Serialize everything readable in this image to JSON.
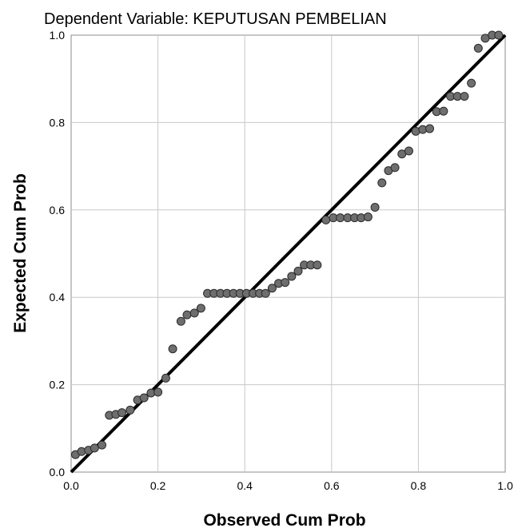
{
  "chart_data": {
    "type": "scatter",
    "title": "Dependent Variable: KEPUTUSAN PEMBELIAN",
    "xlabel": "Observed Cum Prob",
    "ylabel": "Expected Cum Prob",
    "xlim": [
      0,
      1
    ],
    "ylim": [
      0,
      1
    ],
    "xticks": [
      "0.0",
      "0.2",
      "0.4",
      "0.6",
      "0.8",
      "1.0"
    ],
    "yticks": [
      "0.0",
      "0.2",
      "0.4",
      "0.6",
      "0.8",
      "1.0"
    ],
    "grid": true,
    "reference_line": {
      "from": [
        0,
        0
      ],
      "to": [
        1,
        1
      ],
      "color": "#000000"
    },
    "marker_color": "#6e6e6e",
    "series": [
      {
        "points": [
          [
            0.01,
            0.04
          ],
          [
            0.024,
            0.047
          ],
          [
            0.04,
            0.05
          ],
          [
            0.054,
            0.055
          ],
          [
            0.071,
            0.062
          ],
          [
            0.088,
            0.13
          ],
          [
            0.103,
            0.132
          ],
          [
            0.117,
            0.136
          ],
          [
            0.136,
            0.142
          ],
          [
            0.153,
            0.165
          ],
          [
            0.168,
            0.17
          ],
          [
            0.184,
            0.181
          ],
          [
            0.2,
            0.183
          ],
          [
            0.218,
            0.215
          ],
          [
            0.234,
            0.282
          ],
          [
            0.253,
            0.345
          ],
          [
            0.267,
            0.36
          ],
          [
            0.284,
            0.364
          ],
          [
            0.299,
            0.375
          ],
          [
            0.314,
            0.409
          ],
          [
            0.329,
            0.409
          ],
          [
            0.344,
            0.409
          ],
          [
            0.359,
            0.409
          ],
          [
            0.374,
            0.409
          ],
          [
            0.389,
            0.409
          ],
          [
            0.404,
            0.409
          ],
          [
            0.419,
            0.409
          ],
          [
            0.434,
            0.409
          ],
          [
            0.448,
            0.409
          ],
          [
            0.463,
            0.421
          ],
          [
            0.478,
            0.432
          ],
          [
            0.493,
            0.434
          ],
          [
            0.508,
            0.448
          ],
          [
            0.523,
            0.46
          ],
          [
            0.537,
            0.474
          ],
          [
            0.552,
            0.474
          ],
          [
            0.567,
            0.474
          ],
          [
            0.587,
            0.577
          ],
          [
            0.604,
            0.582
          ],
          [
            0.62,
            0.582
          ],
          [
            0.637,
            0.582
          ],
          [
            0.653,
            0.582
          ],
          [
            0.668,
            0.582
          ],
          [
            0.684,
            0.584
          ],
          [
            0.7,
            0.606
          ],
          [
            0.716,
            0.662
          ],
          [
            0.731,
            0.69
          ],
          [
            0.746,
            0.697
          ],
          [
            0.762,
            0.728
          ],
          [
            0.778,
            0.735
          ],
          [
            0.794,
            0.78
          ],
          [
            0.81,
            0.784
          ],
          [
            0.826,
            0.786
          ],
          [
            0.842,
            0.825
          ],
          [
            0.858,
            0.826
          ],
          [
            0.874,
            0.86
          ],
          [
            0.89,
            0.86
          ],
          [
            0.906,
            0.86
          ],
          [
            0.922,
            0.89
          ],
          [
            0.938,
            0.97
          ],
          [
            0.954,
            0.993
          ],
          [
            0.97,
            1.0
          ],
          [
            0.985,
            1.0
          ]
        ]
      }
    ]
  }
}
